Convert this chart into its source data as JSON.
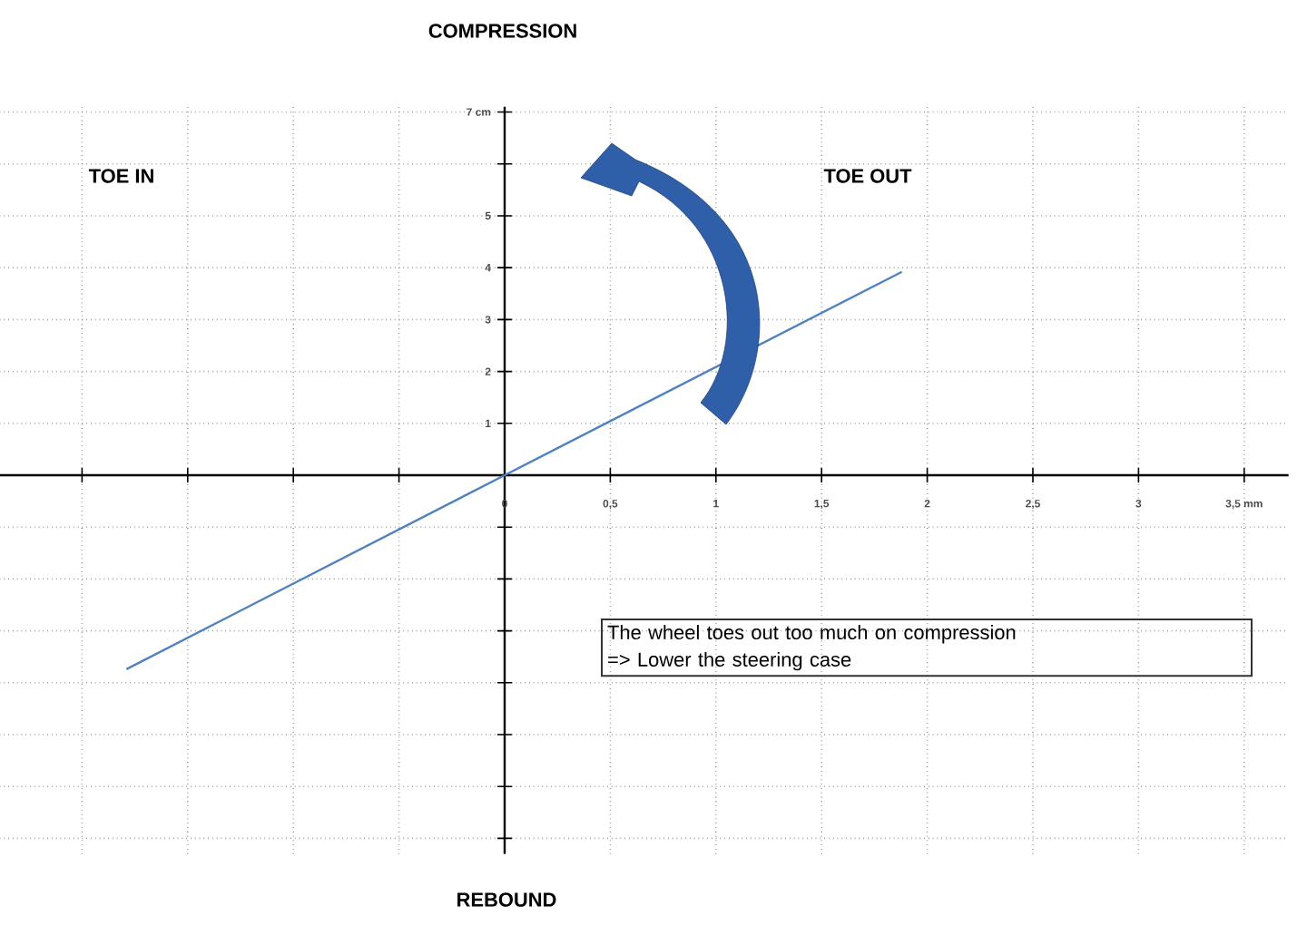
{
  "chart_data": {
    "type": "line",
    "x": [
      -1.79,
      0,
      1.88
    ],
    "series": [
      {
        "color": "#4f81bd",
        "values": [
          -3.74,
          0,
          3.92
        ]
      }
    ],
    "xlim": [
      -2.39,
      3.71
    ],
    "ylim": [
      -7.3,
      7.1
    ],
    "xticks": [
      {
        "value": -2,
        "label": null
      },
      {
        "value": -1.5,
        "label": null
      },
      {
        "value": -1,
        "label": null
      },
      {
        "value": -0.5,
        "label": null
      },
      {
        "value": 0,
        "label": "0"
      },
      {
        "value": 0.5,
        "label": "0,5"
      },
      {
        "value": 1,
        "label": "1"
      },
      {
        "value": 1.5,
        "label": "1,5"
      },
      {
        "value": 2,
        "label": "2"
      },
      {
        "value": 2.5,
        "label": "2,5"
      },
      {
        "value": 3,
        "label": "3"
      },
      {
        "value": 3.5,
        "label": "3,5 mm"
      }
    ],
    "yticks": [
      {
        "value": -7,
        "label": null
      },
      {
        "value": -6,
        "label": null
      },
      {
        "value": -5,
        "label": null
      },
      {
        "value": -4,
        "label": null
      },
      {
        "value": -3,
        "label": null
      },
      {
        "value": -2,
        "label": null
      },
      {
        "value": -1,
        "label": null
      },
      1,
      2,
      3,
      4,
      5,
      {
        "value": 6,
        "label": null
      },
      {
        "value": 7,
        "label": "7 cm"
      }
    ],
    "grid": true,
    "marker": "none",
    "line_style": "solid",
    "annotations": [
      "COMPRESSION",
      "TOE IN",
      "TOE OUT",
      "REBOUND",
      "The wheel toes out too much on compression",
      "=> Lower the steering case"
    ]
  }
}
